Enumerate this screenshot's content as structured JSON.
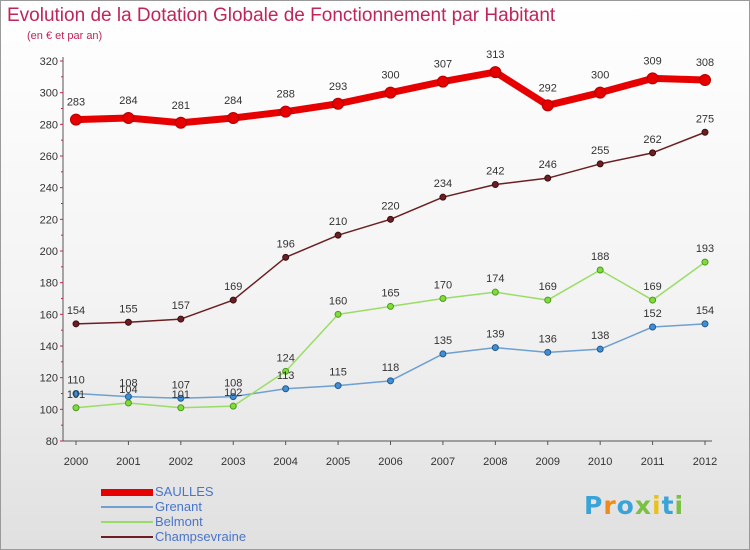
{
  "chart_data": {
    "type": "line",
    "title": "Evolution de la Dotation Globale de Fonctionnement par Habitant",
    "subtitle": "(en € et par an)",
    "categories": [
      "2000",
      "2001",
      "2002",
      "2003",
      "2004",
      "2005",
      "2006",
      "2007",
      "2008",
      "2009",
      "2010",
      "2011",
      "2012"
    ],
    "ylim": [
      80,
      320
    ],
    "yticks": [
      80,
      100,
      120,
      140,
      160,
      180,
      200,
      220,
      240,
      260,
      280,
      300,
      320
    ],
    "grid": false,
    "legend_position": "bottom-left",
    "series": [
      {
        "name": "SAULLES",
        "color": "#e60000",
        "values": [
          283,
          284,
          281,
          284,
          288,
          293,
          300,
          307,
          313,
          292,
          300,
          309,
          308
        ]
      },
      {
        "name": "Grenant",
        "color": "#6fa0cf",
        "values": [
          110,
          108,
          107,
          108,
          113,
          115,
          118,
          135,
          139,
          136,
          138,
          152,
          154
        ]
      },
      {
        "name": "Belmont",
        "color": "#99dd66",
        "values": [
          101,
          104,
          101,
          102,
          124,
          160,
          165,
          170,
          174,
          169,
          188,
          169,
          193
        ]
      },
      {
        "name": "Champsevraine",
        "color": "#6b1f22",
        "values": [
          154,
          155,
          157,
          169,
          196,
          210,
          220,
          234,
          242,
          246,
          255,
          262,
          275
        ]
      }
    ]
  },
  "logo": {
    "letters": [
      "P",
      "r",
      "o",
      "x",
      "i",
      "t",
      "i"
    ],
    "colors": [
      "#3aa3d8",
      "#f08a1c",
      "#3aa3d8",
      "#79c043",
      "#e8c11c",
      "#3aa3d8",
      "#79c043"
    ]
  }
}
